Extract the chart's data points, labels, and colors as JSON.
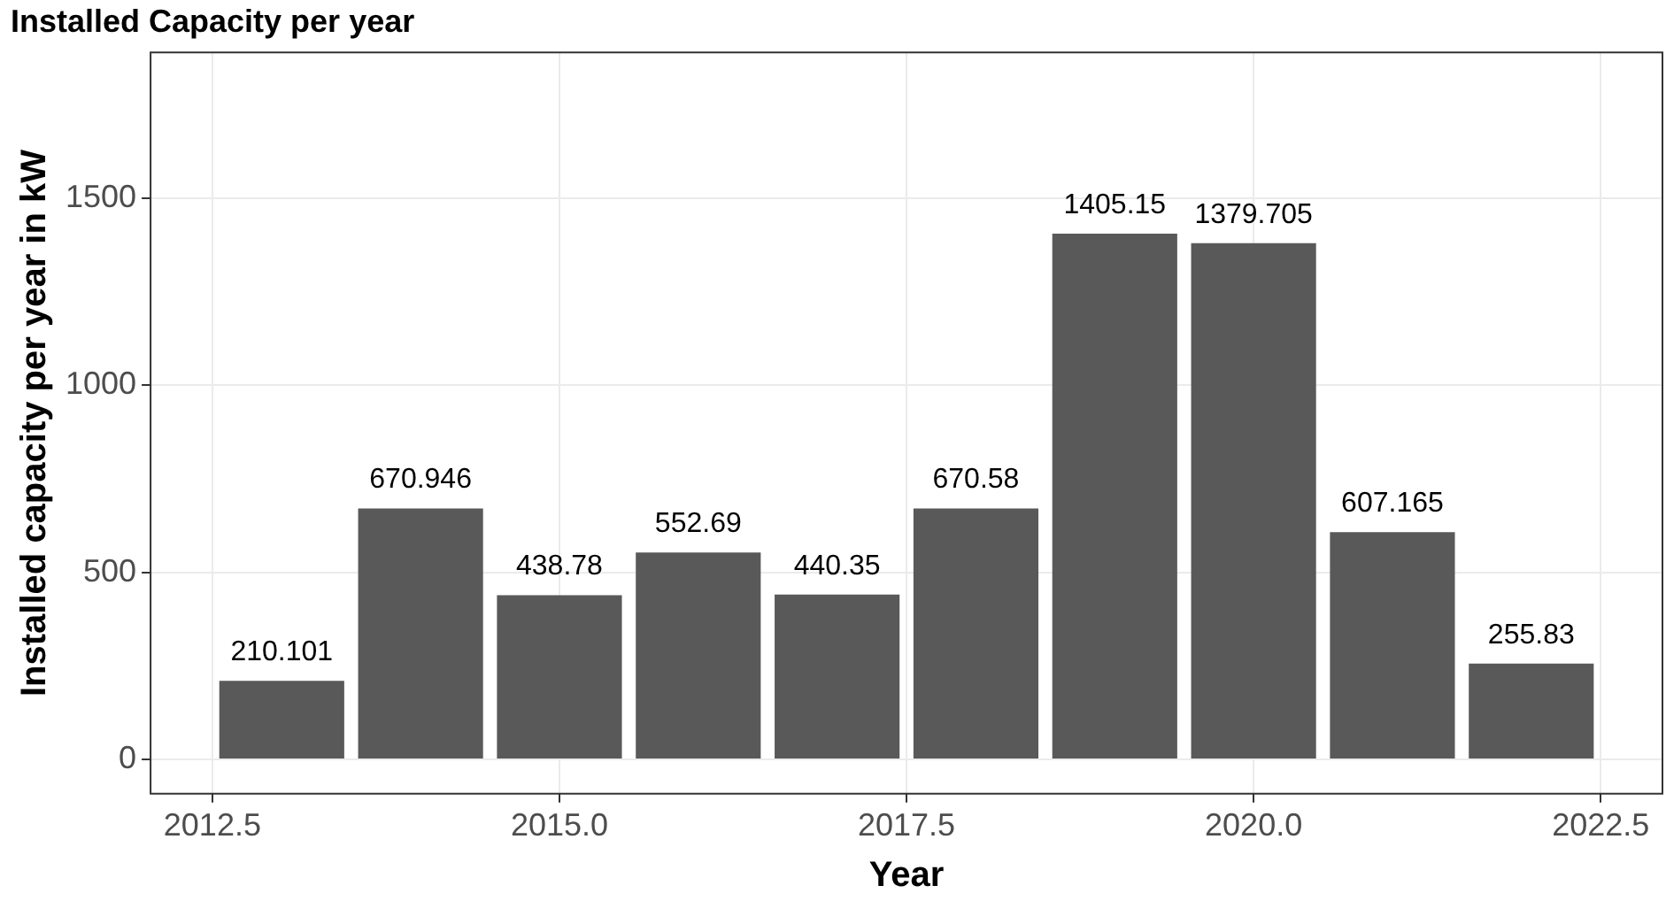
{
  "chart_data": {
    "type": "bar",
    "title": "Installed Capacity per year",
    "xlabel": "Year",
    "ylabel": "Installed capacity per year in kW",
    "x": [
      2013,
      2014,
      2015,
      2016,
      2017,
      2018,
      2019,
      2020,
      2021,
      2022
    ],
    "values": [
      210.101,
      670.946,
      438.78,
      552.69,
      440.35,
      670.58,
      1405.15,
      1379.705,
      607.165,
      255.83
    ],
    "color": "#595959",
    "xlim": [
      2012.055,
      2022.945
    ],
    "xticks": [
      2012.5,
      {
        "value": 2015,
        "label": "2015.0"
      },
      2017.5,
      {
        "value": 2020,
        "label": "2020.0"
      },
      2022.5
    ],
    "ylim": [
      -92,
      1890
    ],
    "yticks": [
      0,
      500,
      1000,
      1500
    ],
    "grid": true,
    "legend": false,
    "data_labels": true
  }
}
